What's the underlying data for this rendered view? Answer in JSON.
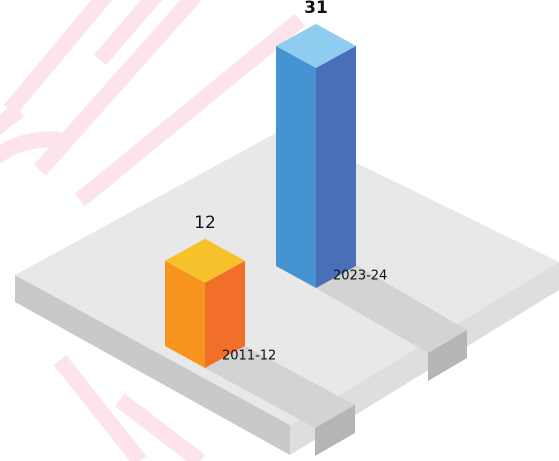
{
  "chart_data": {
    "type": "bar",
    "categories": [
      "2011-12",
      "2023-24"
    ],
    "values": [
      12,
      31
    ],
    "colors": [
      {
        "top": "#f7c12c",
        "left": "#f7941d",
        "right": "#f26f2a"
      },
      {
        "top": "#8ecdf0",
        "left": "#4693d1",
        "right": "#4a6fb9"
      }
    ]
  }
}
